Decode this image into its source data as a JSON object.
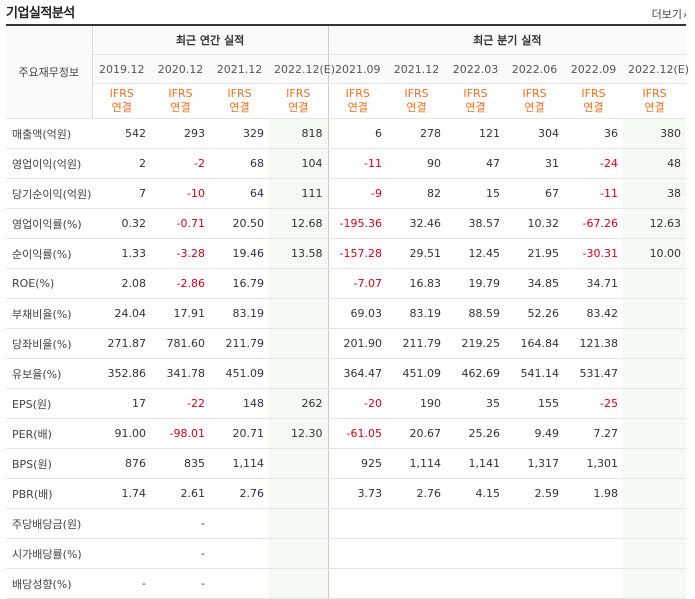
{
  "header": {
    "title": "기업실적분석",
    "more_label": "더보기",
    "more_arrow": "›"
  },
  "table": {
    "corner_label": "주요재무정보",
    "group_annual": "최근 연간 실적",
    "group_quarter": "최근 분기 실적",
    "columns": [
      "2019.12",
      "2020.12",
      "2021.12",
      "2022.12(E)",
      "2021.09",
      "2021.12",
      "2022.03",
      "2022.06",
      "2022.09",
      "2022.12(E)"
    ],
    "basis_top": "IFRS",
    "basis_bottom": "연결",
    "rows": [
      {
        "label": "매출액(억원)",
        "values": [
          "542",
          "293",
          "329",
          "818",
          "6",
          "278",
          "121",
          "304",
          "36",
          "380"
        ]
      },
      {
        "label": "영업이익(억원)",
        "values": [
          "2",
          "-2",
          "68",
          "104",
          "-11",
          "90",
          "47",
          "31",
          "-24",
          "48"
        ]
      },
      {
        "label": "당기순이익(억원)",
        "values": [
          "7",
          "-10",
          "64",
          "111",
          "-9",
          "82",
          "15",
          "67",
          "-11",
          "38"
        ]
      },
      {
        "label": "영업이익률(%)",
        "values": [
          "0.32",
          "-0.71",
          "20.50",
          "12.68",
          "-195.36",
          "32.46",
          "38.57",
          "10.32",
          "-67.26",
          "12.63"
        ]
      },
      {
        "label": "순이익률(%)",
        "values": [
          "1.33",
          "-3.28",
          "19.46",
          "13.58",
          "-157.28",
          "29.51",
          "12.45",
          "21.95",
          "-30.31",
          "10.00"
        ]
      },
      {
        "label": "ROE(%)",
        "values": [
          "2.08",
          "-2.86",
          "16.79",
          "",
          "-7.07",
          "16.83",
          "19.79",
          "34.85",
          "34.71",
          ""
        ]
      },
      {
        "label": "부채비율(%)",
        "values": [
          "24.04",
          "17.91",
          "83.19",
          "",
          "69.03",
          "83.19",
          "88.59",
          "52.26",
          "83.42",
          ""
        ]
      },
      {
        "label": "당좌비율(%)",
        "values": [
          "271.87",
          "781.60",
          "211.79",
          "",
          "201.90",
          "211.79",
          "219.25",
          "164.84",
          "121.38",
          ""
        ]
      },
      {
        "label": "유보율(%)",
        "values": [
          "352.86",
          "341.78",
          "451.09",
          "",
          "364.47",
          "451.09",
          "462.69",
          "541.14",
          "531.47",
          ""
        ]
      },
      {
        "label": "EPS(원)",
        "values": [
          "17",
          "-22",
          "148",
          "262",
          "-20",
          "190",
          "35",
          "155",
          "-25",
          ""
        ]
      },
      {
        "label": "PER(배)",
        "values": [
          "91.00",
          "-98.01",
          "20.71",
          "12.30",
          "-61.05",
          "20.67",
          "25.26",
          "9.49",
          "7.27",
          ""
        ]
      },
      {
        "label": "BPS(원)",
        "values": [
          "876",
          "835",
          "1,114",
          "",
          "925",
          "1,114",
          "1,141",
          "1,317",
          "1,301",
          ""
        ]
      },
      {
        "label": "PBR(배)",
        "values": [
          "1.74",
          "2.61",
          "2.76",
          "",
          "3.73",
          "2.76",
          "4.15",
          "2.59",
          "1.98",
          ""
        ]
      },
      {
        "label": "주당배당금(원)",
        "values": [
          "",
          "-",
          "",
          "",
          "",
          "",
          "",
          "",
          "",
          ""
        ]
      },
      {
        "label": "시가배당률(%)",
        "values": [
          "",
          "-",
          "",
          "",
          "",
          "",
          "",
          "",
          "",
          ""
        ]
      },
      {
        "label": "배당성향(%)",
        "values": [
          "-",
          "-",
          "",
          "",
          "",
          "",
          "",
          "",
          "",
          ""
        ]
      }
    ]
  },
  "colors": {
    "negative": "#d0021b",
    "ifrs": "#ee6f1f",
    "estimate_bg": "#f4f9f2"
  }
}
